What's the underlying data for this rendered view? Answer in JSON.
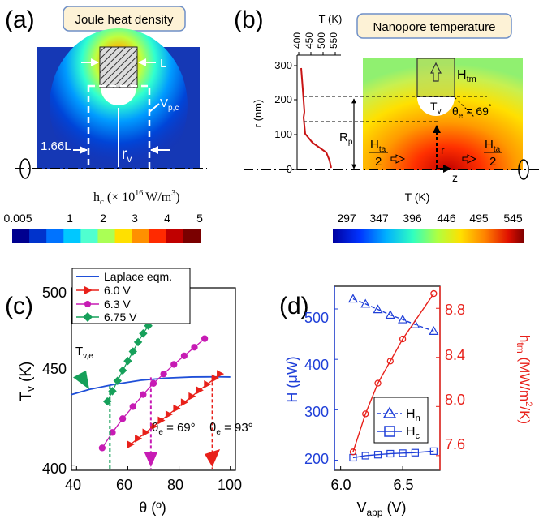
{
  "panel_a": {
    "label": "(a)",
    "title": "Joule heat density",
    "dim_L": "L",
    "dim_Vpc": "V",
    "dim_Vpc_sub": "p,c",
    "dim_166L": "1.66L",
    "dim_rv": "r",
    "dim_rv_sub": "v",
    "colorbar_label": "h",
    "colorbar_label_sub": "c",
    "colorbar_unit": "(× 10",
    "colorbar_unit_exp": "16",
    "colorbar_unit_tail": "W/m",
    "colorbar_unit_exp2": "3",
    "colorbar_unit_close": ")",
    "colorbar_ticks": [
      "0.005",
      "1",
      "2",
      "3",
      "4",
      "5"
    ],
    "colorbar_colors": [
      "#00008f",
      "#0033cc",
      "#0073ff",
      "#00c8ff",
      "#50ffd0",
      "#aaff55",
      "#ffe000",
      "#ff9000",
      "#ff2a00",
      "#c00000",
      "#7a0000"
    ]
  },
  "panel_b": {
    "label": "(b)",
    "title": "Nanopore temperature",
    "profile_axis_title": "T (K)",
    "profile_ticks": [
      "400",
      "450",
      "500",
      "550"
    ],
    "r_axis_label": "r (nm)",
    "r_ticks": [
      "0",
      "100",
      "200",
      "300"
    ],
    "Htm": "H",
    "Htm_sub": "tm",
    "Tv": "T",
    "Tv_sub": "v",
    "theta_label": "θ",
    "theta_sub": "e",
    "theta_value": " = 69",
    "theta_deg": "°",
    "Rp": "R",
    "Rp_sub": "p",
    "Hta": "H",
    "Hta_sub": "ta",
    "Hta_den": "2",
    "r_arrow": "r",
    "z_arrow": "z",
    "colorbar_label": "T (K)",
    "colorbar_ticks": [
      "297",
      "347",
      "396",
      "446",
      "495",
      "545"
    ],
    "colorbar_colors": [
      "#0000a0",
      "#0033ff",
      "#00b0ff",
      "#30ffc0",
      "#b0ff40",
      "#ffe000",
      "#ff8000",
      "#e01000",
      "#800000"
    ]
  },
  "panel_c": {
    "label": "(c)",
    "xlabel": "θ (º)",
    "ylabel": "T",
    "ylabel_sub": "v",
    "ylabel_unit": " (K)",
    "Tve": "T",
    "Tve_sub": "v,e",
    "ann1": "θ",
    "ann1_sub": "e",
    "ann1_val": " = 69°",
    "ann2": "θ",
    "ann2_sub": "e",
    "ann2_val": " = 93°",
    "legend": [
      "Laplace eqm.",
      "6.0 V",
      "6.3 V",
      "6.75 V"
    ],
    "x_ticks": [
      "40",
      "60",
      "80",
      "100"
    ],
    "y_ticks": [
      "400",
      "450",
      "500"
    ],
    "colors": {
      "laplace": "#1f4fd8",
      "v60": "#e8201a",
      "v63": "#c71bb4",
      "v675": "#16a05a"
    }
  },
  "panel_d": {
    "label": "(d)",
    "xlabel": "V",
    "xlabel_sub": "app",
    "xlabel_unit": " (V)",
    "ylabel_left": "H (μW)",
    "ylabel_right": "h",
    "ylabel_right_sub": "tm",
    "ylabel_right_unit": " (MW/m",
    "ylabel_right_exp": "2",
    "ylabel_right_tail": "/K)",
    "legend_Hn": "H",
    "legend_Hn_sub": "n",
    "legend_Hc": "H",
    "legend_Hc_sub": "c",
    "x_ticks": [
      "6.0",
      "6.5"
    ],
    "y_left_ticks": [
      "200",
      "300",
      "400",
      "500"
    ],
    "y_right_ticks": [
      "7.6",
      "8.0",
      "8.4",
      "8.8"
    ]
  },
  "chart_data": [
    {
      "type": "line",
      "panel": "(c)",
      "title": "",
      "xlabel": "θ (º)",
      "ylabel": "Tv (K)",
      "xlim": [
        38,
        102
      ],
      "ylim": [
        397,
        503
      ],
      "series": [
        {
          "name": "Laplace eqm.",
          "marker": "none",
          "color": "#1f4fd8",
          "x": [
            38,
            45,
            55,
            65,
            75,
            85,
            95,
            100
          ],
          "y": [
            441,
            444,
            447,
            449.3,
            450.6,
            451.2,
            451.3,
            451.2
          ]
        },
        {
          "name": "6.0 V",
          "marker": "triangle-right",
          "color": "#e8201a",
          "x": [
            61,
            64,
            67,
            70,
            73,
            76,
            79,
            82,
            85,
            88,
            91,
            94,
            96
          ],
          "y": [
            412,
            415.5,
            419,
            422.5,
            426,
            429.5,
            433,
            436.5,
            440,
            443.5,
            447,
            450.5,
            453
          ]
        },
        {
          "name": "6.3 V",
          "marker": "circle",
          "color": "#c71bb4",
          "x": [
            50,
            54,
            58,
            62,
            66,
            70,
            74,
            78,
            82,
            86,
            90
          ],
          "y": [
            410,
            419,
            427,
            434,
            441,
            447.5,
            453,
            458.5,
            463.5,
            468.5,
            473.5
          ]
        },
        {
          "name": "6.75 V",
          "marker": "diamond",
          "color": "#16a05a",
          "x": [
            52,
            54,
            56,
            58,
            60,
            62,
            64,
            66,
            68,
            70
          ],
          "y": [
            437,
            443,
            449,
            455,
            460.5,
            466,
            471.5,
            476.5,
            481,
            485.5
          ]
        }
      ],
      "annotations": [
        {
          "text": "Tv,e",
          "x": 40,
          "y": 451
        },
        {
          "text": "θe = 69°",
          "x": 69,
          "y": 431
        },
        {
          "text": "θe = 93°",
          "x": 93,
          "y": 431
        },
        {
          "vline": 53,
          "color": "#16a05a"
        },
        {
          "vline": 69,
          "color": "#c71bb4"
        },
        {
          "vline": 93,
          "color": "#e8201a"
        }
      ]
    },
    {
      "type": "line",
      "panel": "(d)",
      "title": "",
      "xlabel": "Vapp (V)",
      "ylabel": "H (μW)",
      "ylabel_right": "htm (MW/m²/K)",
      "xlim": [
        5.95,
        6.8
      ],
      "ylim": [
        180,
        545
      ],
      "ylim_right": [
        7.48,
        8.98
      ],
      "series": [
        {
          "name": "Hn",
          "axis": "left",
          "marker": "triangle-up",
          "style": "dashed",
          "color": "#1f3fd8",
          "x": [
            6.1,
            6.2,
            6.3,
            6.4,
            6.5,
            6.6,
            6.75
          ],
          "y": [
            520,
            510,
            499,
            488,
            479,
            469,
            456
          ]
        },
        {
          "name": "Hc",
          "axis": "left",
          "marker": "square",
          "style": "solid",
          "color": "#1f3fd8",
          "x": [
            6.1,
            6.2,
            6.3,
            6.4,
            6.5,
            6.6,
            6.75
          ],
          "y": [
            205,
            209,
            211,
            213,
            214,
            215,
            218
          ]
        },
        {
          "name": "htm",
          "axis": "right",
          "marker": "circle",
          "style": "solid",
          "color": "#e8201a",
          "x": [
            6.1,
            6.2,
            6.3,
            6.4,
            6.5,
            6.75
          ],
          "y": [
            7.63,
            7.94,
            8.19,
            8.37,
            8.55,
            8.92
          ]
        }
      ]
    }
  ]
}
